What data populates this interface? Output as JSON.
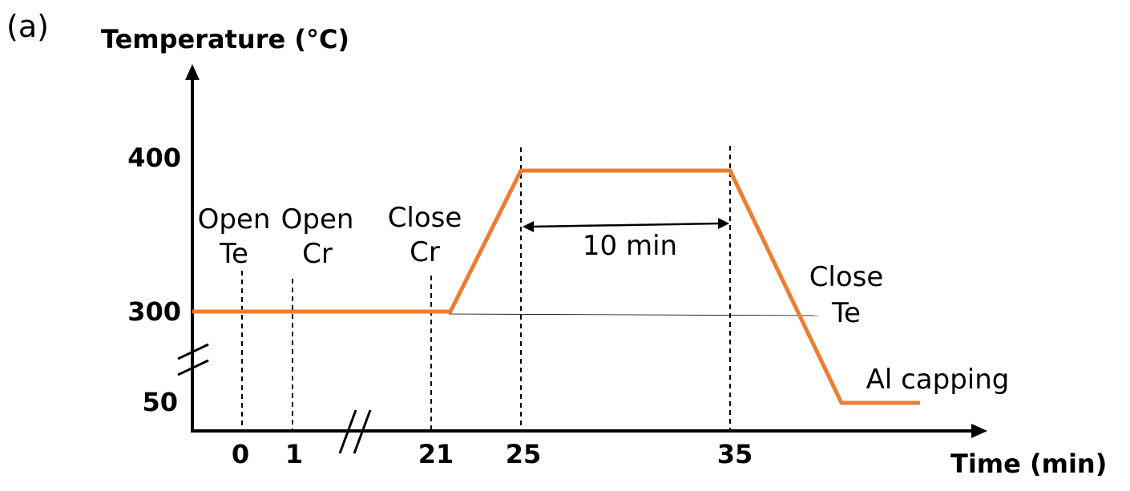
{
  "panel_label": "(a)",
  "y_axis_title": "Temperature (°C)",
  "x_axis_title": "Time (min)",
  "y_ticks": [
    "400",
    "300",
    "50"
  ],
  "x_ticks": [
    "0",
    "1",
    "21",
    "25",
    "35"
  ],
  "events": {
    "open_te": [
      "Open",
      "Te"
    ],
    "open_cr": [
      "Open",
      "Cr"
    ],
    "close_cr": [
      "Close",
      "Cr"
    ],
    "close_te": [
      "Close",
      "Te"
    ],
    "al_capping": "Al capping"
  },
  "duration_label": "10 min",
  "colors": {
    "profile": "#ED7D31",
    "axes": "#000000"
  }
}
